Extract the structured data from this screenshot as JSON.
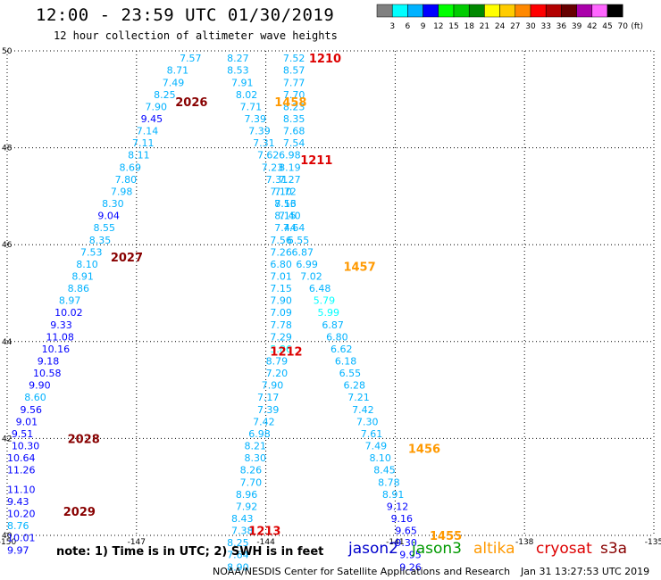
{
  "header": {
    "title": "12:00 - 23:59 UTC 01/30/2019",
    "subtitle": "12 hour collection of altimeter wave heights"
  },
  "colorbar": {
    "unit_label": "(ft)",
    "ticks": [
      "3",
      "6",
      "9",
      "12",
      "15",
      "18",
      "21",
      "24",
      "27",
      "30",
      "33",
      "36",
      "39",
      "42",
      "45",
      "70"
    ],
    "colors": [
      "#808080",
      "#00ffff",
      "#00b2ff",
      "#0000ff",
      "#00ff00",
      "#00cc00",
      "#008800",
      "#ffff00",
      "#ffcc00",
      "#ff8800",
      "#ff0000",
      "#b20000",
      "#660000",
      "#aa00aa",
      "#ff66ff",
      "#000000"
    ]
  },
  "footer": {
    "note": "note: 1) Time is in UTC; 2) SWH is in feet",
    "credit": "NOAA/NESDIS Center for Satellite Applications and Research",
    "timestamp": "Jan 31 13:27:53 UTC 2019"
  },
  "legend": [
    {
      "name": "jason2",
      "color": "#0000cc"
    },
    {
      "name": "jason3",
      "color": "#009900"
    },
    {
      "name": "altika",
      "color": "#ff9900"
    },
    {
      "name": "cryosat",
      "color": "#dd0000"
    },
    {
      "name": "s3a",
      "color": "#880000"
    }
  ],
  "chart_data": {
    "type": "scatter",
    "xlim": [
      -150,
      -135
    ],
    "ylim": [
      40,
      50
    ],
    "x_ticks": [
      "-150",
      "-147",
      "-144",
      "-141",
      "-138",
      "-135"
    ],
    "y_ticks": [
      "40",
      "42",
      "44",
      "46",
      "48",
      "50"
    ],
    "grid": true,
    "pass_labels": [
      {
        "text": "1210",
        "lon": -143.0,
        "lat": 49.85,
        "satellite": "cryosat",
        "color": "#dd0000"
      },
      {
        "text": "2026",
        "lon": -146.1,
        "lat": 48.95,
        "satellite": "s3a",
        "color": "#880000"
      },
      {
        "text": "1458",
        "lon": -143.8,
        "lat": 48.95,
        "satellite": "altika",
        "color": "#ff9900"
      },
      {
        "text": "1211",
        "lon": -143.2,
        "lat": 47.75,
        "satellite": "cryosat",
        "color": "#dd0000"
      },
      {
        "text": "2027",
        "lon": -147.6,
        "lat": 45.75,
        "satellite": "s3a",
        "color": "#880000"
      },
      {
        "text": "1457",
        "lon": -142.2,
        "lat": 45.55,
        "satellite": "altika",
        "color": "#ff9900"
      },
      {
        "text": "1212",
        "lon": -143.9,
        "lat": 43.8,
        "satellite": "cryosat",
        "color": "#dd0000"
      },
      {
        "text": "2028",
        "lon": -148.6,
        "lat": 42.0,
        "satellite": "s3a",
        "color": "#880000"
      },
      {
        "text": "1456",
        "lon": -140.7,
        "lat": 41.8,
        "satellite": "altika",
        "color": "#ff9900"
      },
      {
        "text": "2029",
        "lon": -148.7,
        "lat": 40.5,
        "satellite": "s3a",
        "color": "#880000"
      },
      {
        "text": "1213",
        "lon": -144.4,
        "lat": 40.1,
        "satellite": "cryosat",
        "color": "#dd0000"
      },
      {
        "text": "1455",
        "lon": -140.2,
        "lat": 40.0,
        "satellite": "altika",
        "color": "#ff9900"
      }
    ],
    "series": [
      {
        "points": [
          {
            "lon": -146.0,
            "lat": 49.85,
            "swh": "7.57"
          },
          {
            "lon": -146.3,
            "lat": 49.6,
            "swh": "8.71"
          },
          {
            "lon": -146.4,
            "lat": 49.35,
            "swh": "7.49"
          },
          {
            "lon": -146.6,
            "lat": 49.1,
            "swh": "8.25"
          },
          {
            "lon": -146.8,
            "lat": 48.85,
            "swh": "7.90"
          },
          {
            "lon": -146.9,
            "lat": 48.6,
            "swh": "9.45"
          },
          {
            "lon": -147.0,
            "lat": 48.35,
            "swh": "7.14"
          },
          {
            "lon": -147.1,
            "lat": 48.1,
            "swh": "7.11"
          },
          {
            "lon": -147.2,
            "lat": 47.85,
            "swh": "8.11"
          },
          {
            "lon": -147.4,
            "lat": 47.6,
            "swh": "8.69"
          },
          {
            "lon": -147.5,
            "lat": 47.35,
            "swh": "7.80"
          },
          {
            "lon": -147.6,
            "lat": 47.1,
            "swh": "7.98"
          },
          {
            "lon": -147.8,
            "lat": 46.85,
            "swh": "8.30"
          },
          {
            "lon": -147.9,
            "lat": 46.6,
            "swh": "9.04"
          },
          {
            "lon": -148.0,
            "lat": 46.35,
            "swh": "8.55"
          },
          {
            "lon": -148.1,
            "lat": 46.1,
            "swh": "8.35"
          },
          {
            "lon": -148.3,
            "lat": 45.85,
            "swh": "7.53"
          },
          {
            "lon": -148.4,
            "lat": 45.6,
            "swh": "8.10"
          },
          {
            "lon": -148.5,
            "lat": 45.35,
            "swh": "8.91"
          },
          {
            "lon": -148.6,
            "lat": 45.1,
            "swh": "8.86"
          },
          {
            "lon": -148.8,
            "lat": 44.85,
            "swh": "8.97"
          },
          {
            "lon": -148.9,
            "lat": 44.6,
            "swh": "10.02"
          },
          {
            "lon": -149.0,
            "lat": 44.35,
            "swh": "9.33"
          },
          {
            "lon": -149.1,
            "lat": 44.1,
            "swh": "11.08"
          },
          {
            "lon": -149.2,
            "lat": 43.85,
            "swh": "10.16"
          },
          {
            "lon": -149.3,
            "lat": 43.6,
            "swh": "9.18"
          },
          {
            "lon": -149.4,
            "lat": 43.35,
            "swh": "10.58"
          },
          {
            "lon": -149.5,
            "lat": 43.1,
            "swh": "9.90"
          },
          {
            "lon": -149.6,
            "lat": 42.85,
            "swh": "8.60"
          },
          {
            "lon": -149.7,
            "lat": 42.6,
            "swh": "9.56"
          },
          {
            "lon": -149.8,
            "lat": 42.35,
            "swh": "9.01"
          },
          {
            "lon": -149.9,
            "lat": 42.1,
            "swh": "9.51"
          },
          {
            "lon": -149.9,
            "lat": 41.85,
            "swh": "10.30"
          },
          {
            "lon": -150.0,
            "lat": 41.6,
            "swh": "10.64"
          },
          {
            "lon": -150.0,
            "lat": 41.35,
            "swh": "11.26"
          },
          {
            "lon": -150.0,
            "lat": 40.95,
            "swh": "11.10"
          },
          {
            "lon": -150.0,
            "lat": 40.7,
            "swh": "9.43"
          },
          {
            "lon": -150.0,
            "lat": 40.45,
            "swh": "10.20"
          },
          {
            "lon": -150.0,
            "lat": 40.2,
            "swh": "8.76"
          },
          {
            "lon": -150.0,
            "lat": 39.95,
            "swh": "10.01"
          },
          {
            "lon": -150.0,
            "lat": 39.7,
            "swh": "9.97"
          }
        ]
      },
      {
        "points": [
          {
            "lon": -144.9,
            "lat": 49.85,
            "swh": "8.27"
          },
          {
            "lon": -144.9,
            "lat": 49.6,
            "swh": "8.53"
          },
          {
            "lon": -144.8,
            "lat": 49.35,
            "swh": "7.91"
          },
          {
            "lon": -144.7,
            "lat": 49.1,
            "swh": "8.02"
          },
          {
            "lon": -144.6,
            "lat": 48.85,
            "swh": "7.71"
          },
          {
            "lon": -144.5,
            "lat": 48.6,
            "swh": "7.39"
          },
          {
            "lon": -144.4,
            "lat": 48.35,
            "swh": "7.39"
          },
          {
            "lon": -144.3,
            "lat": 48.1,
            "swh": "7.31"
          },
          {
            "lon": -144.2,
            "lat": 47.85,
            "swh": "7.62"
          },
          {
            "lon": -144.1,
            "lat": 47.6,
            "swh": "7.23"
          },
          {
            "lon": -144.0,
            "lat": 47.35,
            "swh": "7.31"
          },
          {
            "lon": -143.9,
            "lat": 47.1,
            "swh": "7.10"
          },
          {
            "lon": -143.8,
            "lat": 46.85,
            "swh": "7.56"
          },
          {
            "lon": -143.8,
            "lat": 46.6,
            "swh": "8.15"
          },
          {
            "lon": -143.8,
            "lat": 46.35,
            "swh": "7.44"
          },
          {
            "lon": -143.9,
            "lat": 46.1,
            "swh": "7.56"
          },
          {
            "lon": -143.9,
            "lat": 45.85,
            "swh": "7.26"
          },
          {
            "lon": -143.9,
            "lat": 45.6,
            "swh": "6.80"
          },
          {
            "lon": -143.9,
            "lat": 45.35,
            "swh": "7.01"
          },
          {
            "lon": -143.9,
            "lat": 45.1,
            "swh": "7.15"
          },
          {
            "lon": -143.9,
            "lat": 44.85,
            "swh": "7.90"
          },
          {
            "lon": -143.9,
            "lat": 44.6,
            "swh": "7.09"
          },
          {
            "lon": -143.9,
            "lat": 44.35,
            "swh": "7.78"
          },
          {
            "lon": -143.9,
            "lat": 44.1,
            "swh": "7.29"
          },
          {
            "lon": -143.9,
            "lat": 43.85,
            "swh": "5.86"
          },
          {
            "lon": -144.0,
            "lat": 43.6,
            "swh": "8.79"
          },
          {
            "lon": -144.0,
            "lat": 43.35,
            "swh": "7.20"
          },
          {
            "lon": -144.1,
            "lat": 43.1,
            "swh": "7.90"
          },
          {
            "lon": -144.2,
            "lat": 42.85,
            "swh": "7.17"
          },
          {
            "lon": -144.2,
            "lat": 42.6,
            "swh": "7.39"
          },
          {
            "lon": -144.3,
            "lat": 42.35,
            "swh": "7.42"
          },
          {
            "lon": -144.4,
            "lat": 42.1,
            "swh": "6.98"
          },
          {
            "lon": -144.5,
            "lat": 41.85,
            "swh": "8.21"
          },
          {
            "lon": -144.5,
            "lat": 41.6,
            "swh": "8.30"
          },
          {
            "lon": -144.6,
            "lat": 41.35,
            "swh": "8.26"
          },
          {
            "lon": -144.6,
            "lat": 41.1,
            "swh": "7.70"
          },
          {
            "lon": -144.7,
            "lat": 40.85,
            "swh": "8.96"
          },
          {
            "lon": -144.7,
            "lat": 40.6,
            "swh": "7.92"
          },
          {
            "lon": -144.8,
            "lat": 40.35,
            "swh": "8.43"
          },
          {
            "lon": -144.8,
            "lat": 40.1,
            "swh": "7.38"
          },
          {
            "lon": -144.9,
            "lat": 39.85,
            "swh": "8.25"
          },
          {
            "lon": -144.9,
            "lat": 39.6,
            "swh": "7.64"
          },
          {
            "lon": -144.9,
            "lat": 39.35,
            "swh": "8.90"
          }
        ]
      },
      {
        "points": [
          {
            "lon": -143.6,
            "lat": 49.85,
            "swh": "7.52"
          },
          {
            "lon": -143.6,
            "lat": 49.6,
            "swh": "8.57"
          },
          {
            "lon": -143.6,
            "lat": 49.35,
            "swh": "7.77"
          },
          {
            "lon": -143.6,
            "lat": 49.1,
            "swh": "7.70"
          },
          {
            "lon": -143.6,
            "lat": 48.85,
            "swh": "8.23"
          },
          {
            "lon": -143.6,
            "lat": 48.6,
            "swh": "8.35"
          },
          {
            "lon": -143.6,
            "lat": 48.35,
            "swh": "7.68"
          },
          {
            "lon": -143.6,
            "lat": 48.1,
            "swh": "7.54"
          },
          {
            "lon": -143.7,
            "lat": 47.85,
            "swh": "6.98"
          },
          {
            "lon": -143.7,
            "lat": 47.6,
            "swh": "8.19"
          },
          {
            "lon": -143.7,
            "lat": 47.35,
            "swh": "7.27"
          },
          {
            "lon": -143.8,
            "lat": 47.1,
            "swh": "7.72"
          },
          {
            "lon": -143.8,
            "lat": 46.85,
            "swh": "8.13"
          },
          {
            "lon": -143.7,
            "lat": 46.6,
            "swh": "7.40"
          },
          {
            "lon": -143.6,
            "lat": 46.35,
            "swh": "7.64"
          },
          {
            "lon": -143.5,
            "lat": 46.1,
            "swh": "6.55"
          },
          {
            "lon": -143.4,
            "lat": 45.85,
            "swh": "6.87"
          },
          {
            "lon": -143.3,
            "lat": 45.6,
            "swh": "6.99"
          },
          {
            "lon": -143.2,
            "lat": 45.35,
            "swh": "7.02"
          },
          {
            "lon": -143.0,
            "lat": 45.1,
            "swh": "6.48"
          },
          {
            "lon": -142.9,
            "lat": 44.85,
            "swh": "5.79"
          },
          {
            "lon": -142.8,
            "lat": 44.6,
            "swh": "5.99"
          },
          {
            "lon": -142.7,
            "lat": 44.35,
            "swh": "6.87"
          },
          {
            "lon": -142.6,
            "lat": 44.1,
            "swh": "6.80"
          },
          {
            "lon": -142.5,
            "lat": 43.85,
            "swh": "6.62"
          },
          {
            "lon": -142.4,
            "lat": 43.6,
            "swh": "6.18"
          },
          {
            "lon": -142.3,
            "lat": 43.35,
            "swh": "6.55"
          },
          {
            "lon": -142.2,
            "lat": 43.1,
            "swh": "6.28"
          },
          {
            "lon": -142.1,
            "lat": 42.85,
            "swh": "7.21"
          },
          {
            "lon": -142.0,
            "lat": 42.6,
            "swh": "7.42"
          },
          {
            "lon": -141.9,
            "lat": 42.35,
            "swh": "7.30"
          },
          {
            "lon": -141.8,
            "lat": 42.1,
            "swh": "7.61"
          },
          {
            "lon": -141.7,
            "lat": 41.85,
            "swh": "7.49"
          },
          {
            "lon": -141.6,
            "lat": 41.6,
            "swh": "8.10"
          },
          {
            "lon": -141.5,
            "lat": 41.35,
            "swh": "8.45"
          },
          {
            "lon": -141.4,
            "lat": 41.1,
            "swh": "8.78"
          },
          {
            "lon": -141.3,
            "lat": 40.85,
            "swh": "8.91"
          },
          {
            "lon": -141.2,
            "lat": 40.6,
            "swh": "9.12"
          },
          {
            "lon": -141.1,
            "lat": 40.35,
            "swh": "9.16"
          },
          {
            "lon": -141.0,
            "lat": 40.1,
            "swh": "9.65"
          },
          {
            "lon": -141.0,
            "lat": 39.85,
            "swh": "9.30"
          },
          {
            "lon": -140.9,
            "lat": 39.6,
            "swh": "9.95"
          },
          {
            "lon": -140.9,
            "lat": 39.35,
            "swh": "9.26"
          }
        ]
      }
    ]
  }
}
